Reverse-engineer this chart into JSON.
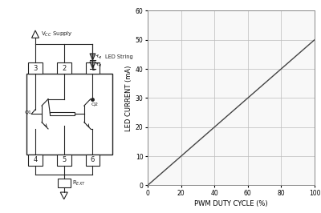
{
  "graph": {
    "x_data": [
      0,
      100
    ],
    "y_data": [
      0,
      50
    ],
    "xlabel": "PWM DUTY CYCLE (%)",
    "ylabel": "LED CURRENT (mA)",
    "xlim": [
      0,
      100
    ],
    "ylim": [
      0,
      60
    ],
    "xticks": [
      0,
      20,
      40,
      60,
      80,
      100
    ],
    "yticks": [
      0,
      10,
      20,
      30,
      40,
      50,
      60
    ],
    "line_color": "#444444",
    "line_width": 1.0,
    "grid_color": "#bbbbbb",
    "bg_color": "#f8f8f8"
  },
  "figure_bg": "#ffffff",
  "circuit_bg": "#ffffff",
  "line_color": "#222222",
  "lw": 0.8
}
